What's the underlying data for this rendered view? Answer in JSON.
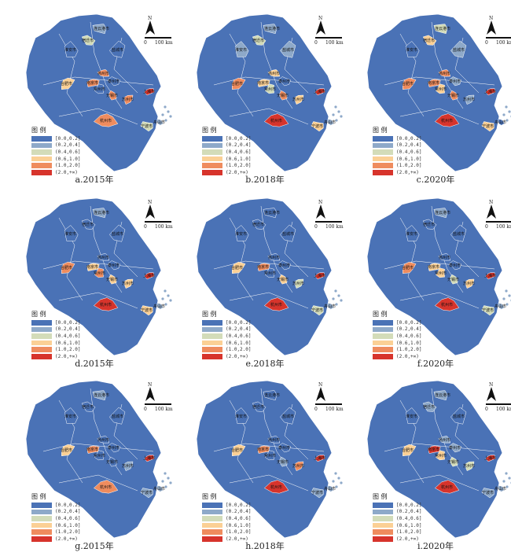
{
  "legend": {
    "title": "图 例",
    "classes": [
      {
        "label": "[0.0,0.2]",
        "color": "#4a72b6"
      },
      {
        "label": "(0.2,0.4]",
        "color": "#8ea9c9"
      },
      {
        "label": "(0.4,0.6]",
        "color": "#d3dcb9"
      },
      {
        "label": "(0.6,1.0]",
        "color": "#fbd095"
      },
      {
        "label": "(1.0,2.0]",
        "color": "#ef8c5e"
      },
      {
        "label": "(2.0,+∞)",
        "color": "#d7342c"
      }
    ]
  },
  "north_label": "N",
  "scale_labels": {
    "zero": "0",
    "end": "100 km"
  },
  "land_color": "#4a72b6",
  "panels": [
    {
      "caption": "a.2015年",
      "cities": [
        {
          "name": "连云港市",
          "class": 1
        },
        {
          "name": "宿迁市",
          "class": 2
        },
        {
          "name": "淮安市",
          "class": 0
        },
        {
          "name": "盐城市",
          "class": 0
        },
        {
          "name": "合肥市",
          "class": 3
        },
        {
          "name": "南京市",
          "class": 4
        },
        {
          "name": "扬州市",
          "class": 4
        },
        {
          "name": "泰州市",
          "class": 0
        },
        {
          "name": "无锡市",
          "class": 4
        },
        {
          "name": "常州市",
          "class": 0
        },
        {
          "name": "苏州市",
          "class": 4
        },
        {
          "name": "上海市",
          "class": 5
        },
        {
          "name": "杭州市",
          "class": 4
        },
        {
          "name": "宁波市",
          "class": 2
        },
        {
          "name": "舟山市",
          "class": 1
        }
      ]
    },
    {
      "caption": "b.2018年",
      "cities": [
        {
          "name": "连云港市",
          "class": 1
        },
        {
          "name": "宿迁市",
          "class": 2
        },
        {
          "name": "淮安市",
          "class": 1
        },
        {
          "name": "盐城市",
          "class": 1
        },
        {
          "name": "合肥市",
          "class": 4
        },
        {
          "name": "南京市",
          "class": 3
        },
        {
          "name": "扬州市",
          "class": 3
        },
        {
          "name": "泰州市",
          "class": 0
        },
        {
          "name": "无锡市",
          "class": 4
        },
        {
          "name": "常州市",
          "class": 2
        },
        {
          "name": "苏州市",
          "class": 3
        },
        {
          "name": "上海市",
          "class": 5
        },
        {
          "name": "杭州市",
          "class": 5
        },
        {
          "name": "宁波市",
          "class": 3
        },
        {
          "name": "舟山市",
          "class": 1
        }
      ]
    },
    {
      "caption": "c.2020年",
      "cities": [
        {
          "name": "连云港市",
          "class": 2
        },
        {
          "name": "宿迁市",
          "class": 3
        },
        {
          "name": "淮安市",
          "class": 0
        },
        {
          "name": "盐城市",
          "class": 1
        },
        {
          "name": "合肥市",
          "class": 4
        },
        {
          "name": "南京市",
          "class": 4
        },
        {
          "name": "扬州市",
          "class": 4
        },
        {
          "name": "泰州市",
          "class": 1
        },
        {
          "name": "无锡市",
          "class": 4
        },
        {
          "name": "常州市",
          "class": 3
        },
        {
          "name": "苏州市",
          "class": 1
        },
        {
          "name": "上海市",
          "class": 5
        },
        {
          "name": "杭州市",
          "class": 5
        },
        {
          "name": "宁波市",
          "class": 3
        },
        {
          "name": "舟山市",
          "class": 0
        }
      ]
    },
    {
      "caption": "d.2015年",
      "cities": [
        {
          "name": "连云港市",
          "class": 1
        },
        {
          "name": "宿迁市",
          "class": 0
        },
        {
          "name": "淮安市",
          "class": 0
        },
        {
          "name": "盐城市",
          "class": 0
        },
        {
          "name": "合肥市",
          "class": 4
        },
        {
          "name": "南京市",
          "class": 3
        },
        {
          "name": "扬州市",
          "class": 0
        },
        {
          "name": "泰州市",
          "class": 0
        },
        {
          "name": "无锡市",
          "class": 3
        },
        {
          "name": "常州市",
          "class": 4
        },
        {
          "name": "苏州市",
          "class": 3
        },
        {
          "name": "上海市",
          "class": 5
        },
        {
          "name": "杭州市",
          "class": 5
        },
        {
          "name": "宁波市",
          "class": 3
        },
        {
          "name": "舟山市",
          "class": 1
        }
      ]
    },
    {
      "caption": "e.2018年",
      "cities": [
        {
          "name": "连云港市",
          "class": 0
        },
        {
          "name": "宿迁市",
          "class": 0
        },
        {
          "name": "淮安市",
          "class": 0
        },
        {
          "name": "盐城市",
          "class": 0
        },
        {
          "name": "合肥市",
          "class": 3
        },
        {
          "name": "南京市",
          "class": 4
        },
        {
          "name": "扬州市",
          "class": 0
        },
        {
          "name": "泰州市",
          "class": 0
        },
        {
          "name": "无锡市",
          "class": 3
        },
        {
          "name": "常州市",
          "class": 0
        },
        {
          "name": "苏州市",
          "class": 2
        },
        {
          "name": "上海市",
          "class": 5
        },
        {
          "name": "杭州市",
          "class": 5
        },
        {
          "name": "宁波市",
          "class": 2
        },
        {
          "name": "舟山市",
          "class": 1
        }
      ]
    },
    {
      "caption": "f.2020年",
      "cities": [
        {
          "name": "连云港市",
          "class": 1
        },
        {
          "name": "宿迁市",
          "class": 0
        },
        {
          "name": "淮安市",
          "class": 0
        },
        {
          "name": "盐城市",
          "class": 0
        },
        {
          "name": "合肥市",
          "class": 4
        },
        {
          "name": "南京市",
          "class": 3
        },
        {
          "name": "扬州市",
          "class": 0
        },
        {
          "name": "泰州市",
          "class": 0
        },
        {
          "name": "无锡市",
          "class": 2
        },
        {
          "name": "常州市",
          "class": 3
        },
        {
          "name": "苏州市",
          "class": 3
        },
        {
          "name": "上海市",
          "class": 5
        },
        {
          "name": "杭州市",
          "class": 5
        },
        {
          "name": "宁波市",
          "class": 2
        },
        {
          "name": "舟山市",
          "class": 1
        }
      ]
    },
    {
      "caption": "g.2015年",
      "cities": [
        {
          "name": "连云港市",
          "class": 1
        },
        {
          "name": "宿迁市",
          "class": 0
        },
        {
          "name": "淮安市",
          "class": 0
        },
        {
          "name": "盐城市",
          "class": 0
        },
        {
          "name": "合肥市",
          "class": 3
        },
        {
          "name": "南京市",
          "class": 4
        },
        {
          "name": "扬州市",
          "class": 0
        },
        {
          "name": "泰州市",
          "class": 0
        },
        {
          "name": "无锡市",
          "class": 0
        },
        {
          "name": "常州市",
          "class": 0
        },
        {
          "name": "苏州市",
          "class": 1
        },
        {
          "name": "上海市",
          "class": 5
        },
        {
          "name": "杭州市",
          "class": 4
        },
        {
          "name": "宁波市",
          "class": 1
        },
        {
          "name": "舟山市",
          "class": 1
        }
      ]
    },
    {
      "caption": "h.2018年",
      "cities": [
        {
          "name": "连云港市",
          "class": 0
        },
        {
          "name": "宿迁市",
          "class": 0
        },
        {
          "name": "淮安市",
          "class": 0
        },
        {
          "name": "盐城市",
          "class": 0
        },
        {
          "name": "合肥市",
          "class": 3
        },
        {
          "name": "南京市",
          "class": 4
        },
        {
          "name": "扬州市",
          "class": 0
        },
        {
          "name": "泰州市",
          "class": 0
        },
        {
          "name": "无锡市",
          "class": 1
        },
        {
          "name": "常州市",
          "class": 0
        },
        {
          "name": "苏州市",
          "class": 4
        },
        {
          "name": "上海市",
          "class": 5
        },
        {
          "name": "杭州市",
          "class": 5
        },
        {
          "name": "宁波市",
          "class": 1
        },
        {
          "name": "舟山市",
          "class": 1
        }
      ]
    },
    {
      "caption": "i.2020年",
      "cities": [
        {
          "name": "连云港市",
          "class": 1
        },
        {
          "name": "宿迁市",
          "class": 1
        },
        {
          "name": "淮安市",
          "class": 0
        },
        {
          "name": "盐城市",
          "class": 0
        },
        {
          "name": "合肥市",
          "class": 3
        },
        {
          "name": "南京市",
          "class": 5
        },
        {
          "name": "扬州市",
          "class": 1
        },
        {
          "name": "泰州市",
          "class": 1
        },
        {
          "name": "无锡市",
          "class": 2
        },
        {
          "name": "常州市",
          "class": 3
        },
        {
          "name": "苏州市",
          "class": 2
        },
        {
          "name": "上海市",
          "class": 5
        },
        {
          "name": "杭州市",
          "class": 5
        },
        {
          "name": "宁波市",
          "class": 1
        },
        {
          "name": "舟山市",
          "class": 1
        }
      ]
    }
  ]
}
